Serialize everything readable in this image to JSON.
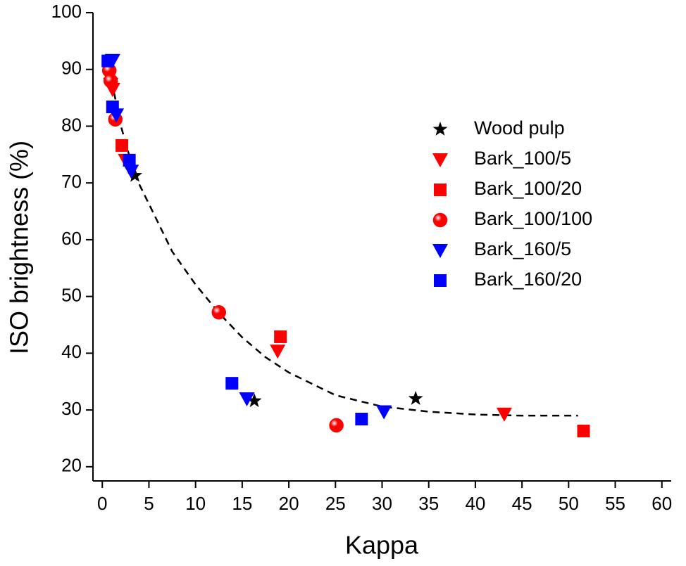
{
  "chart_data": {
    "type": "scatter",
    "x_label": "Kappa",
    "y_label": "ISO brightness (%)",
    "xlim": [
      -1,
      61
    ],
    "ylim": [
      17.5,
      100
    ],
    "xticks": [
      0,
      5,
      10,
      15,
      20,
      25,
      30,
      35,
      40,
      45,
      50,
      55,
      60
    ],
    "yticks": [
      20,
      30,
      40,
      50,
      60,
      70,
      80,
      90,
      100
    ],
    "grid": false,
    "legend_position": "upper right",
    "series": [
      {
        "name": "Wood pulp",
        "color": "#000000",
        "marker": "star",
        "x": [
          3.5,
          16.3,
          33.6
        ],
        "values": [
          71.3,
          31.6,
          32.0
        ]
      },
      {
        "name": "Bark_100/5",
        "color": "#ff0000",
        "marker": "triangle-down",
        "x": [
          0.9,
          1.1,
          2.5,
          18.8,
          43.1
        ],
        "values": [
          87.4,
          86.5,
          74.0,
          40.4,
          29.3
        ]
      },
      {
        "name": "Bark_100/20",
        "color": "#ff0000",
        "marker": "square",
        "x": [
          2.1,
          19.1,
          51.6
        ],
        "values": [
          76.6,
          42.9,
          26.3
        ]
      },
      {
        "name": "Bark_100/100",
        "color": "#ff0000",
        "marker": "sphere",
        "x": [
          0.75,
          0.9,
          1.4,
          12.5,
          25.1
        ],
        "values": [
          89.8,
          88.0,
          81.2,
          47.2,
          27.3
        ]
      },
      {
        "name": "Bark_160/5",
        "color": "#0000ff",
        "marker": "triangle-down",
        "x": [
          1.1,
          1.5,
          3.1,
          15.5,
          30.2
        ],
        "values": [
          91.6,
          82.0,
          72.1,
          32.0,
          29.7
        ]
      },
      {
        "name": "Bark_160/20",
        "color": "#0000ff",
        "marker": "square",
        "x": [
          0.6,
          1.1,
          2.9,
          13.9,
          27.8
        ],
        "values": [
          91.5,
          83.4,
          74.0,
          34.7,
          28.4
        ]
      }
    ],
    "fit": {
      "color": "#000000",
      "style": "dashed",
      "x": [
        1,
        2,
        3.5,
        5,
        7.5,
        10,
        12.5,
        15,
        17.5,
        20,
        25,
        30,
        35,
        40,
        45,
        51
      ],
      "values": [
        88,
        80,
        71.3,
        66.3,
        57.9,
        52.1,
        47.1,
        42.8,
        39.3,
        36.6,
        32.6,
        30.6,
        29.7,
        29.2,
        29.0,
        29.0
      ]
    }
  }
}
